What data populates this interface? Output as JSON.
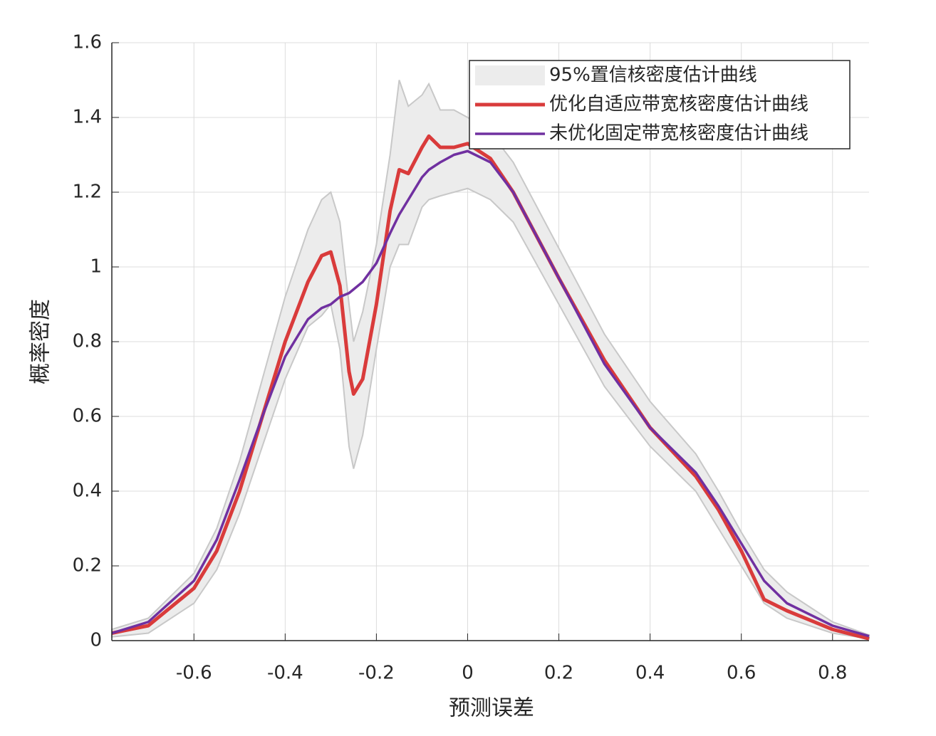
{
  "chart_data": {
    "type": "line",
    "xlabel": "预测误差",
    "ylabel": "概率密度",
    "xlim": [
      -0.78,
      0.88
    ],
    "ylim": [
      0,
      1.6
    ],
    "xticks": [
      -0.6,
      -0.4,
      -0.2,
      0,
      0.2,
      0.4,
      0.6,
      0.8
    ],
    "yticks": [
      0,
      0.2,
      0.4,
      0.6,
      0.8,
      1,
      1.2,
      1.4,
      1.6
    ],
    "grid": true,
    "legend": "upper right",
    "x": [
      -0.78,
      -0.7,
      -0.6,
      -0.55,
      -0.5,
      -0.45,
      -0.4,
      -0.35,
      -0.32,
      -0.3,
      -0.28,
      -0.26,
      -0.25,
      -0.23,
      -0.2,
      -0.17,
      -0.15,
      -0.13,
      -0.1,
      -0.085,
      -0.06,
      -0.03,
      0,
      0.05,
      0.1,
      0.2,
      0.3,
      0.4,
      0.5,
      0.55,
      0.6,
      0.65,
      0.7,
      0.8,
      0.88
    ],
    "band": {
      "name": "95%置信核密度估计曲线",
      "color": "#ececec",
      "lower": [
        0.01,
        0.02,
        0.1,
        0.19,
        0.34,
        0.52,
        0.7,
        0.84,
        0.87,
        0.9,
        0.78,
        0.52,
        0.46,
        0.55,
        0.78,
        1.0,
        1.06,
        1.06,
        1.16,
        1.18,
        1.19,
        1.2,
        1.21,
        1.18,
        1.12,
        0.9,
        0.68,
        0.52,
        0.4,
        0.3,
        0.2,
        0.1,
        0.06,
        0.02,
        0.005
      ],
      "upper": [
        0.03,
        0.06,
        0.18,
        0.3,
        0.48,
        0.7,
        0.92,
        1.1,
        1.18,
        1.2,
        1.12,
        0.9,
        0.8,
        0.88,
        1.06,
        1.3,
        1.5,
        1.43,
        1.46,
        1.49,
        1.42,
        1.42,
        1.4,
        1.36,
        1.28,
        1.05,
        0.82,
        0.64,
        0.5,
        0.4,
        0.29,
        0.19,
        0.13,
        0.05,
        0.015
      ]
    },
    "series": [
      {
        "name": "优化自适应带宽核密度估计曲线",
        "color": "#d93b3b",
        "values": [
          0.02,
          0.04,
          0.14,
          0.24,
          0.4,
          0.6,
          0.8,
          0.96,
          1.03,
          1.04,
          0.95,
          0.72,
          0.66,
          0.7,
          0.9,
          1.15,
          1.26,
          1.25,
          1.32,
          1.35,
          1.32,
          1.32,
          1.33,
          1.29,
          1.2,
          0.97,
          0.75,
          0.57,
          0.44,
          0.35,
          0.24,
          0.11,
          0.08,
          0.03,
          0.005
        ]
      },
      {
        "name": "未优化固定带宽核密度估计曲线",
        "color": "#7030a0",
        "values": [
          0.02,
          0.05,
          0.16,
          0.27,
          0.43,
          0.6,
          0.76,
          0.86,
          0.89,
          0.9,
          0.92,
          0.93,
          0.94,
          0.96,
          1.01,
          1.09,
          1.14,
          1.18,
          1.24,
          1.26,
          1.28,
          1.3,
          1.31,
          1.28,
          1.2,
          0.97,
          0.74,
          0.57,
          0.45,
          0.36,
          0.26,
          0.16,
          0.1,
          0.04,
          0.012
        ]
      }
    ]
  }
}
